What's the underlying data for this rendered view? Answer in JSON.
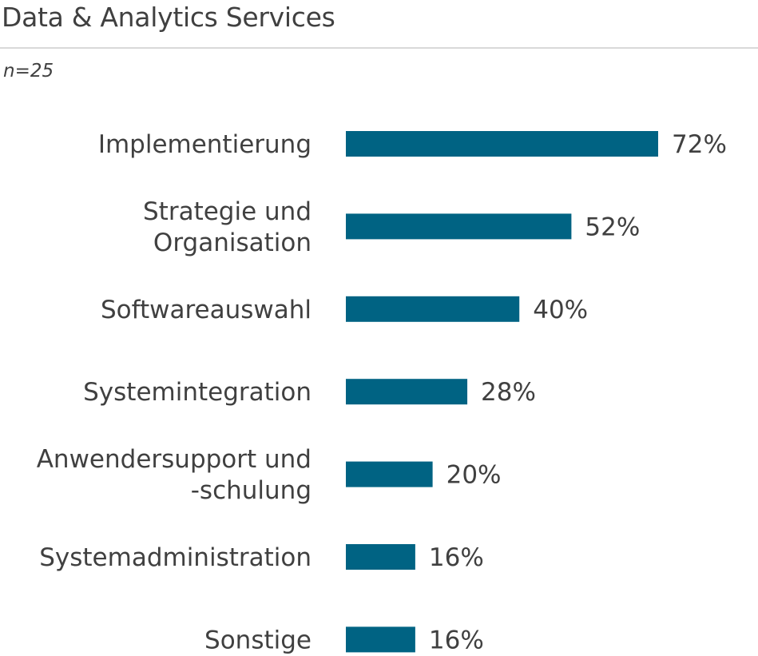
{
  "chart_data": {
    "type": "bar",
    "orientation": "horizontal",
    "title": "Data & Analytics Services",
    "subtitle": "n=25",
    "categories": [
      [
        "Implementierung"
      ],
      [
        "Strategie und",
        "Organisation"
      ],
      [
        "Softwareauswahl"
      ],
      [
        "Systemintegration"
      ],
      [
        "Anwendersupport und",
        "-schulung"
      ],
      [
        "Systemadministration"
      ],
      [
        "Sonstige"
      ]
    ],
    "values": [
      72,
      52,
      40,
      28,
      20,
      16,
      16
    ],
    "value_labels": [
      "72%",
      "52%",
      "40%",
      "28%",
      "20%",
      "16%",
      "16%"
    ],
    "unit": "%",
    "xlim": [
      0,
      100
    ],
    "grid": false,
    "bar_color": "#006383"
  }
}
